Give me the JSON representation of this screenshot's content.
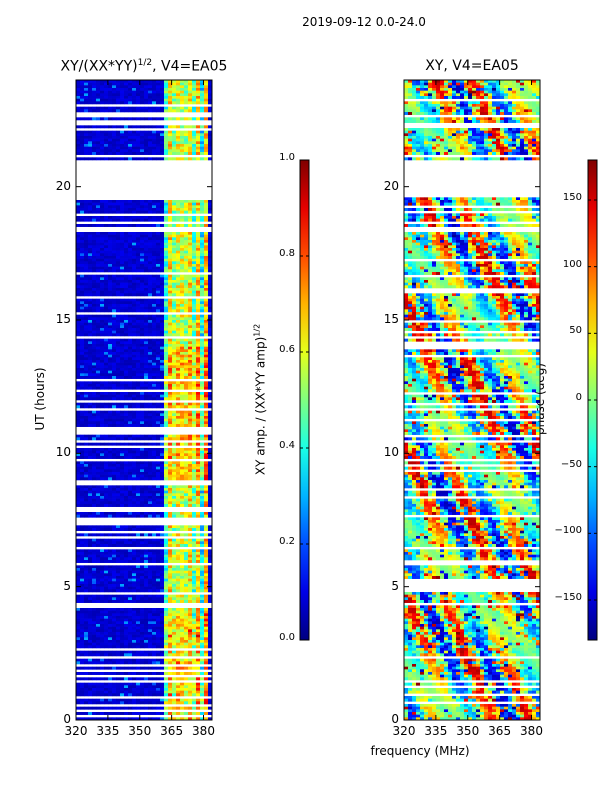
{
  "title": "2019-09-12 0.0-24.0",
  "xlabel": "frequency (MHz)",
  "ylabel": "UT (hours)",
  "chart_data": [
    {
      "type": "heatmap",
      "title": "XY/(XX*YY)^1/2, V4=EA05",
      "title_main": "XY/(XX*YY)",
      "title_exp": "1/2",
      "title_rest": ", V4=EA05",
      "xlabel": "frequency (MHz)",
      "ylabel": "UT (hours)",
      "xlim": [
        320,
        384
      ],
      "ylim": [
        0,
        24
      ],
      "xticks": [
        320,
        335,
        350,
        365,
        380
      ],
      "yticks": [
        0,
        5,
        10,
        15,
        20
      ],
      "colorbar": {
        "label_main": "XY amp. / (XX*YY amp)",
        "label_exp": "1/2",
        "range": [
          0.0,
          1.0
        ],
        "ticks": [
          "0.0",
          "0.2",
          "0.4",
          "0.6",
          "0.8",
          "1.0"
        ],
        "colormap": "jet"
      },
      "gap_hours": [
        19.5,
        21.0
      ]
    },
    {
      "type": "heatmap",
      "title": "XY, V4=EA05",
      "xlabel": "frequency (MHz)",
      "xlim": [
        320,
        384
      ],
      "ylim": [
        0,
        24
      ],
      "xticks": [
        320,
        335,
        350,
        365,
        380
      ],
      "yticks": [
        0,
        5,
        10,
        15,
        20
      ],
      "colorbar": {
        "label": "phase (deg)",
        "range": [
          -180,
          180
        ],
        "ticks": [
          "150",
          "100",
          "50",
          "0",
          "−50",
          "−100",
          "−150"
        ],
        "colormap": "jet"
      },
      "gap_hours": [
        19.6,
        21.0
      ]
    }
  ]
}
